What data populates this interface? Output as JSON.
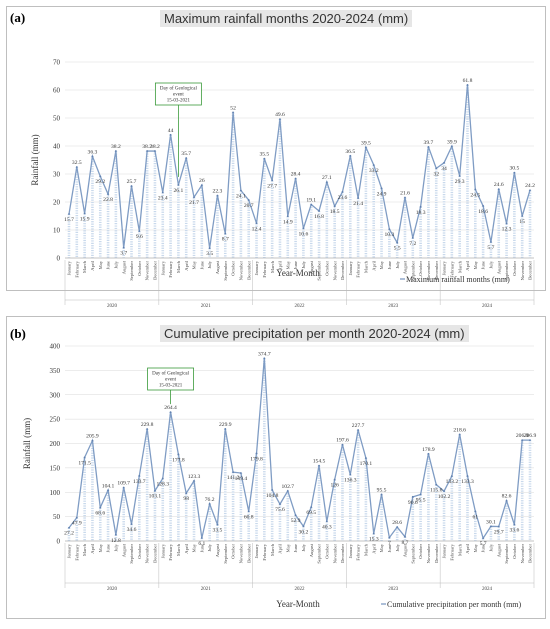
{
  "chart_data": [
    {
      "panel_letter": "(a)",
      "type": "line",
      "title": "Maximum rainfall months 2020-2024 (mm)",
      "xlabel": "Year-Month",
      "ylabel": "Rainfall (mm)",
      "ylim": [
        0,
        70
      ],
      "ytick_step": 10,
      "grid": true,
      "legend": "bottom-right",
      "months": [
        "January",
        "February",
        "March",
        "April",
        "May",
        "June",
        "July",
        "August",
        "September",
        "October",
        "November",
        "December"
      ],
      "years": [
        "2020",
        "2021",
        "2022",
        "2023",
        "2024"
      ],
      "series": [
        {
          "name": "Maximum rainfall months (mm)",
          "color": "#7f9cc4",
          "values": [
            15.7,
            32.5,
            15.9,
            36.3,
            29.2,
            22.8,
            38.2,
            3.7,
            25.7,
            9.6,
            38.2,
            38.2,
            23.4,
            44,
            26.1,
            35.7,
            21.7,
            26,
            3.5,
            22.3,
            8.7,
            52,
            24.1,
            20.7,
            12.4,
            35.5,
            27.7,
            49.6,
            14.9,
            28.4,
            10.6,
            19.1,
            16.8,
            27.1,
            18.5,
            23.6,
            36.5,
            21.4,
            39.5,
            33.2,
            24.9,
            10.3,
            5.5,
            21.6,
            7.2,
            18.3,
            39.7,
            32,
            34,
            39.9,
            29.3,
            61.8,
            24.5,
            18.6,
            5.7,
            24.6,
            12.3,
            30.5,
            15,
            24.2
          ]
        }
      ],
      "annotation": {
        "lines": [
          "Day of Geological",
          "event",
          "15-03-2021"
        ],
        "at_index": 14
      }
    },
    {
      "panel_letter": "(b)",
      "type": "line",
      "title": "Cumulative precipitation per month 2020-2024 (mm)",
      "xlabel": "Year-Month",
      "ylabel": "Rainfall (mm)",
      "ylim": [
        0,
        400
      ],
      "ytick_step": 50,
      "grid": true,
      "legend": "bottom-right",
      "months": [
        "January",
        "February",
        "March",
        "April",
        "May",
        "June",
        "July",
        "August",
        "September",
        "October",
        "November",
        "December"
      ],
      "years": [
        "2020",
        "2021",
        "2022",
        "2023",
        "2024"
      ],
      "series": [
        {
          "name": "Cumulative precipitation per month (mm)",
          "color": "#7f9cc4",
          "values": [
            27.2,
            47.9,
            171.5,
            205.9,
            68.6,
            104.1,
            12.8,
            109.7,
            34.6,
            133.7,
            229.8,
            103.1,
            128.3,
            264.4,
            177.8,
            98,
            123.3,
            6.1,
            76.2,
            33.5,
            229.9,
            141.2,
            139.4,
            60.8,
            179.8,
            374.7,
            104.8,
            75.6,
            102.7,
            52.9,
            30.2,
            69.5,
            154.5,
            40.3,
            126,
            197.6,
            136.3,
            227.7,
            170.1,
            15.3,
            95.5,
            7,
            28.6,
            8.7,
            90.6,
            95.5,
            178.9,
            115.6,
            102.2,
            133.2,
            218.6,
            133.3,
            61,
            5.7,
            30.1,
            29.7,
            82.6,
            33.6,
            206.9,
            206.9
          ]
        }
      ],
      "annotation": {
        "lines": [
          "Day of Geological",
          "event",
          "15-03-2021"
        ],
        "at_index": 13
      }
    }
  ]
}
